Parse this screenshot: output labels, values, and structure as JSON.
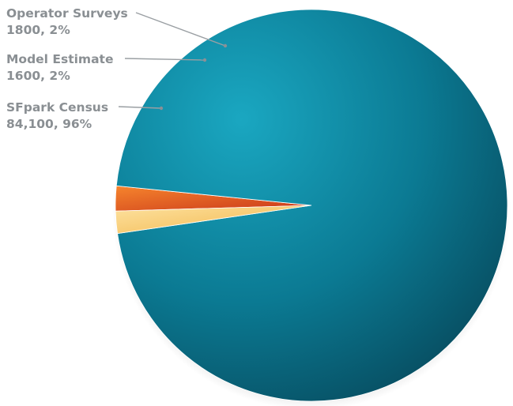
{
  "chart_data": {
    "type": "pie",
    "title": "",
    "slices": [
      {
        "name": "SFpark Census",
        "value": 84100,
        "percent_label": "84,100, 96%",
        "color": "#0e7f97"
      },
      {
        "name": "Model Estimate",
        "value": 1600,
        "percent_label": "1600, 2%",
        "color": "#f7c76a"
      },
      {
        "name": "Operator Surveys",
        "value": 1800,
        "percent_label": "1800, 2%",
        "color": "#ee6a22"
      }
    ],
    "legend": "none",
    "labels_position": "outside-left"
  }
}
